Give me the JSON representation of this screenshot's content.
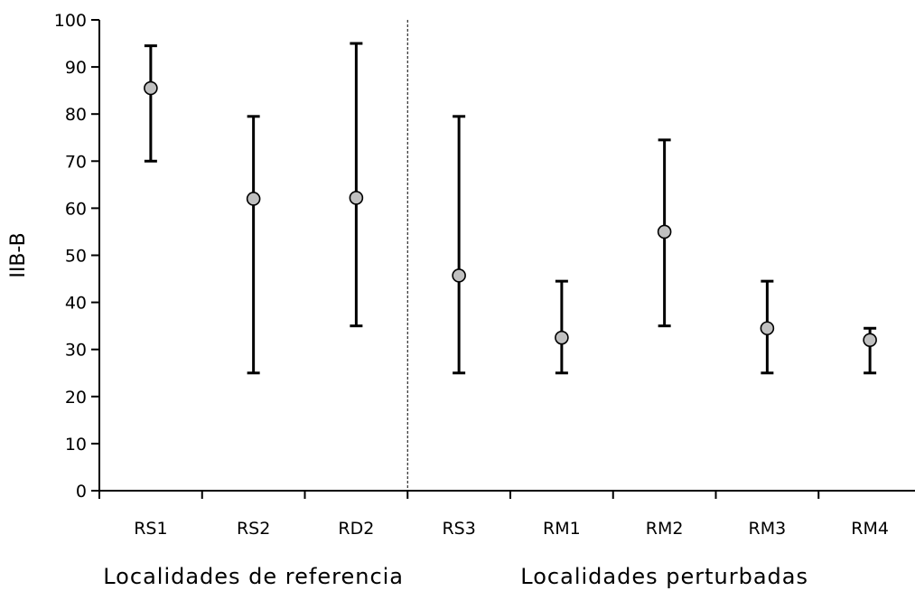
{
  "chart_data": {
    "type": "errorbar",
    "ylabel": "IIB-B",
    "ylim": [
      0,
      100
    ],
    "yticks": [
      0,
      10,
      20,
      30,
      40,
      50,
      60,
      70,
      80,
      90,
      100
    ],
    "categories": [
      "RS1",
      "RS2",
      "RD2",
      "RS3",
      "RM1",
      "RM2",
      "RM3",
      "RM4"
    ],
    "points": [
      {
        "label": "RS1",
        "value": 85.5,
        "low": 70,
        "high": 94.5
      },
      {
        "label": "RS2",
        "value": 62,
        "low": 25,
        "high": 79.5
      },
      {
        "label": "RD2",
        "value": 62.2,
        "low": 35,
        "high": 95
      },
      {
        "label": "RS3",
        "value": 45.7,
        "low": 25,
        "high": 79.5
      },
      {
        "label": "RM1",
        "value": 32.5,
        "low": 25,
        "high": 44.5
      },
      {
        "label": "RM2",
        "value": 55,
        "low": 35,
        "high": 74.5
      },
      {
        "label": "RM3",
        "value": 34.5,
        "low": 25,
        "high": 44.5
      },
      {
        "label": "RM4",
        "value": 32,
        "low": 25,
        "high": 34.5
      }
    ],
    "groups": [
      {
        "label": "Localidades de referencia",
        "categories": [
          "RS1",
          "RS2",
          "RD2"
        ]
      },
      {
        "label": "Localidades perturbadas",
        "categories": [
          "RS3",
          "RM1",
          "RM2",
          "RM3",
          "RM4"
        ]
      }
    ],
    "marker_color": "#c0c0c0",
    "line_color": "#000000",
    "divider_style": "dashed"
  }
}
